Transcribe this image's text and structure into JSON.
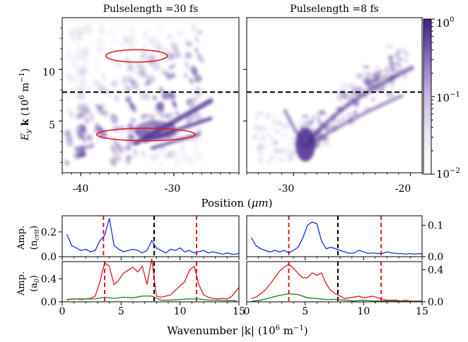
{
  "chart_data": [
    {
      "type": "heatmap",
      "title": "Pulselength =30 fs",
      "ylabel": "E_y k (10^6 m^-1)",
      "xlim": [
        -42,
        -23
      ],
      "ylim": [
        0,
        15
      ],
      "xticks": [
        "-40",
        "-30"
      ],
      "yticks": [
        "5",
        "10"
      ],
      "dashed_line_y": 7.8,
      "ellipses": [
        {
          "cx": -34,
          "cy": 11.3,
          "rx": 3.3,
          "ry": 0.6
        },
        {
          "cx": -33,
          "cy": 3.7,
          "rx": 5.3,
          "ry": 0.6
        }
      ]
    },
    {
      "type": "heatmap",
      "title": "Pulselength =8 fs",
      "xlim": [
        -34,
        -19
      ],
      "ylim": [
        0,
        15
      ],
      "xticks": [
        "-30",
        "-20"
      ],
      "dashed_line_y": 7.8
    },
    {
      "type": "colorbar",
      "scale": "log",
      "range": [
        0.01,
        1
      ],
      "tick_labels": [
        {
          "base": "10",
          "exp": "0",
          "value": 1
        },
        {
          "base": "10",
          "exp": "−1",
          "value": 0.1
        },
        {
          "base": "10",
          "exp": "−2",
          "value": 0.01
        }
      ]
    },
    {
      "type": "line",
      "ylabel": "Amp. (n_crit)",
      "xlim": [
        0,
        15
      ],
      "ylim": [
        0,
        0.33
      ],
      "yticks": [
        "0.0",
        "0.2"
      ],
      "vlines": [
        {
          "x": 3.5,
          "color": "red"
        },
        {
          "x": 7.8,
          "color": "black"
        },
        {
          "x": 11.4,
          "color": "red"
        }
      ],
      "series": [
        {
          "color": "blue",
          "x": [
            0.4,
            0.8,
            1.2,
            1.6,
            2.0,
            2.4,
            2.8,
            3.2,
            3.6,
            4.0,
            4.4,
            4.8,
            5.2,
            5.6,
            6.0,
            6.4,
            6.8,
            7.2,
            7.6,
            8.0,
            8.4,
            8.8,
            9.2,
            9.6,
            10.0,
            10.4,
            10.8,
            11.2,
            11.6,
            12.0,
            12.4,
            12.8,
            13.2,
            13.6,
            14.0,
            14.4,
            14.8,
            15.0
          ],
          "y": [
            0.18,
            0.09,
            0.07,
            0.05,
            0.06,
            0.04,
            0.05,
            0.13,
            0.17,
            0.31,
            0.09,
            0.06,
            0.04,
            0.05,
            0.06,
            0.05,
            0.03,
            0.05,
            0.13,
            0.07,
            0.05,
            0.03,
            0.06,
            0.05,
            0.07,
            0.04,
            0.05,
            0.03,
            0.04,
            0.05,
            0.03,
            0.04,
            0.03,
            0.02,
            0.03,
            0.02,
            0.02,
            0.03
          ]
        }
      ]
    },
    {
      "type": "line",
      "xlim": [
        0,
        15
      ],
      "ylim": [
        0,
        0.13
      ],
      "yticks": [
        "0.0",
        "0.1"
      ],
      "vlines": [
        {
          "x": 3.6,
          "color": "red"
        },
        {
          "x": 7.8,
          "color": "black"
        },
        {
          "x": 11.5,
          "color": "red"
        }
      ],
      "series": [
        {
          "color": "blue",
          "x": [
            0.4,
            0.8,
            1.2,
            1.6,
            2.0,
            2.4,
            2.8,
            3.2,
            3.6,
            4.0,
            4.4,
            4.8,
            5.2,
            5.6,
            6.0,
            6.4,
            6.8,
            7.2,
            7.6,
            8.0,
            8.4,
            8.8,
            9.2,
            9.6,
            10.0,
            10.4,
            10.8,
            11.2,
            11.6,
            12.0,
            12.4,
            12.8,
            13.2,
            13.6,
            14.0,
            14.4,
            14.8,
            15.0
          ],
          "y": [
            0.06,
            0.035,
            0.025,
            0.02,
            0.015,
            0.02,
            0.015,
            0.02,
            0.012,
            0.02,
            0.03,
            0.06,
            0.1,
            0.11,
            0.105,
            0.05,
            0.025,
            0.03,
            0.025,
            0.02,
            0.015,
            0.01,
            0.012,
            0.02,
            0.015,
            0.01,
            0.012,
            0.01,
            0.01,
            0.015,
            0.012,
            0.01,
            0.01,
            0.008,
            0.01,
            0.008,
            0.01,
            0.008
          ]
        }
      ]
    },
    {
      "type": "line",
      "ylabel": "Amp. (a_0)",
      "xlabel": "Wavenumber |k| (10^6 m^-1)",
      "xlim": [
        0,
        15
      ],
      "ylim": [
        0,
        0.7
      ],
      "xticks": [
        "0",
        "5",
        "10",
        "15"
      ],
      "yticks": [
        "0.0",
        "0.4"
      ],
      "vlines": [
        {
          "x": 3.6,
          "color": "red"
        },
        {
          "x": 7.8,
          "color": "black"
        },
        {
          "x": 11.4,
          "color": "red"
        }
      ],
      "series": [
        {
          "color": "red",
          "x": [
            0.4,
            0.8,
            1.2,
            1.6,
            2.0,
            2.4,
            2.8,
            3.2,
            3.6,
            4.0,
            4.4,
            4.8,
            5.2,
            5.6,
            6.0,
            6.4,
            6.8,
            7.2,
            7.6,
            8.0,
            8.4,
            8.8,
            9.2,
            9.6,
            10.0,
            10.4,
            10.8,
            11.2,
            11.6,
            12.0,
            12.4,
            12.8,
            13.2,
            13.6,
            14.0,
            14.4,
            14.8,
            15.0
          ],
          "y": [
            0.03,
            0.05,
            0.05,
            0.04,
            0.05,
            0.06,
            0.1,
            0.35,
            0.68,
            0.62,
            0.3,
            0.38,
            0.5,
            0.55,
            0.6,
            0.52,
            0.62,
            0.3,
            0.75,
            0.1,
            0.08,
            0.1,
            0.12,
            0.2,
            0.28,
            0.35,
            0.55,
            0.62,
            0.3,
            0.12,
            0.08,
            0.06,
            0.05,
            0.06,
            0.05,
            0.1,
            0.2,
            0.25
          ]
        },
        {
          "color": "green",
          "x": [
            0.4,
            1.2,
            2.0,
            2.8,
            3.6,
            4.4,
            5.2,
            6.0,
            6.8,
            7.6,
            8.4,
            9.2,
            10.0,
            10.8,
            11.6,
            12.4,
            13.2,
            14.0,
            14.8
          ],
          "y": [
            0.04,
            0.05,
            0.05,
            0.05,
            0.08,
            0.06,
            0.08,
            0.07,
            0.1,
            0.1,
            0.03,
            0.03,
            0.04,
            0.05,
            0.05,
            0.03,
            0.03,
            0.02,
            0.02
          ]
        }
      ]
    },
    {
      "type": "line",
      "xlim": [
        0,
        15
      ],
      "ylim": [
        0,
        0.5
      ],
      "xticks": [
        "0",
        "5",
        "10",
        "15"
      ],
      "yticks": [
        "0.0",
        "0.4"
      ],
      "vlines": [
        {
          "x": 3.6,
          "color": "red"
        },
        {
          "x": 7.8,
          "color": "black"
        },
        {
          "x": 11.5,
          "color": "red"
        }
      ],
      "series": [
        {
          "color": "red",
          "x": [
            0.4,
            0.8,
            1.2,
            1.6,
            2.0,
            2.4,
            2.8,
            3.2,
            3.6,
            4.0,
            4.4,
            4.8,
            5.2,
            5.6,
            6.0,
            6.4,
            6.8,
            7.2,
            7.6,
            8.0,
            8.4,
            8.8,
            9.2,
            9.6,
            10.0,
            10.4,
            10.8,
            11.2,
            11.6,
            12.0,
            12.4,
            12.8,
            13.2,
            13.6,
            14.0,
            14.4,
            14.8,
            15.0
          ],
          "y": [
            0.04,
            0.06,
            0.1,
            0.15,
            0.22,
            0.3,
            0.38,
            0.43,
            0.47,
            0.42,
            0.35,
            0.3,
            0.3,
            0.36,
            0.33,
            0.36,
            0.22,
            0.14,
            0.1,
            0.07,
            0.04,
            0.05,
            0.06,
            0.07,
            0.05,
            0.06,
            0.07,
            0.05,
            0.03,
            0.02,
            0.02,
            0.02,
            0.01,
            0.02,
            0.01,
            0.01,
            0.01,
            0.01
          ]
        },
        {
          "color": "green",
          "x": [
            0.4,
            1.2,
            2.0,
            2.8,
            3.6,
            4.4,
            5.2,
            6.0,
            6.8,
            7.6,
            8.4,
            9.2,
            10.0,
            10.8,
            11.6,
            12.4,
            13.2,
            14.0,
            14.8
          ],
          "y": [
            0.005,
            0.02,
            0.05,
            0.08,
            0.1,
            0.09,
            0.05,
            0.04,
            0.03,
            0.03,
            0.02,
            0.01,
            0.02,
            0.01,
            0.01,
            0.01,
            0.005,
            0.005,
            0.005
          ]
        }
      ]
    }
  ],
  "labels": {
    "position_label_text": "Position (",
    "position_label_mu": "μm",
    "position_label_end": ")",
    "ylabel_top_E": "E",
    "ylabel_top_y": "y",
    "ylabel_top_k": " k",
    "ylabel_top_units": " (10",
    "ylabel_top_exp6": "6",
    "ylabel_top_m": " m",
    "ylabel_top_expm1": "−1",
    "ylabel_top_end": ")",
    "amp_label": "Amp.",
    "ncrit_n": "(n",
    "ncrit_sub": "crit",
    "ncrit_end": ")",
    "a0_a": "(a",
    "a0_sub": "0",
    "a0_end": ")",
    "xlabel_main": "Wavenumber |k| (10",
    "xlabel_exp6": "6",
    "xlabel_m": " m",
    "xlabel_expm1": "−1",
    "xlabel_end": ")"
  },
  "colors": {
    "heat": "#4b2c8e",
    "heat_light": "#b8a6d9",
    "red": "#e8141e",
    "blue": "#1430e6",
    "green": "#1b7a1b",
    "black": "#000000"
  }
}
